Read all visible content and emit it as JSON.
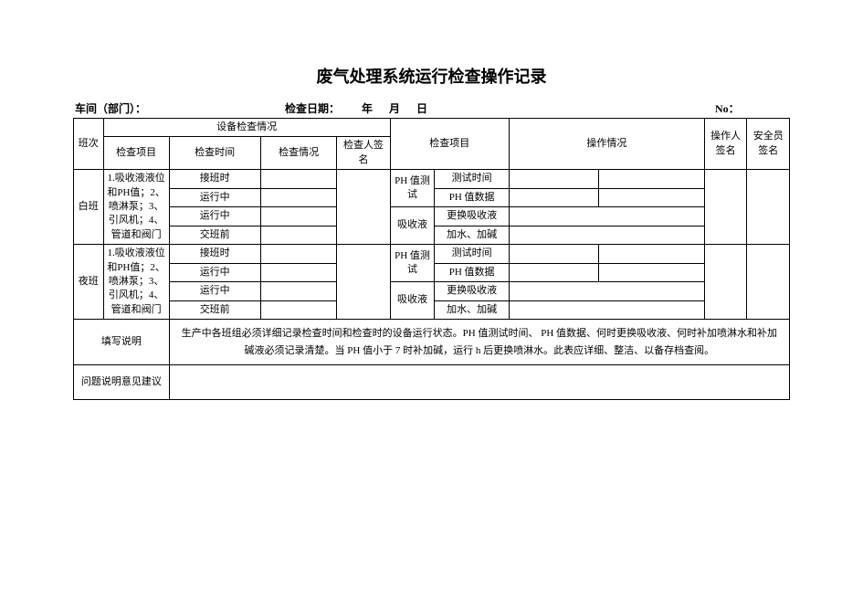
{
  "title": "废气处理系统运行检查操作记录",
  "header": {
    "workshop_label": "车间（部门）：",
    "date_label": "检查日期：",
    "year_label": "年",
    "month_label": "月",
    "day_label": "日",
    "no_label": "No：",
    "spacer6": "      ",
    "spacer4": "    "
  },
  "table_headers": {
    "shift": "班次",
    "equipment_check": "设备检查情况",
    "check_item": "检查项目",
    "check_time": "检查时间",
    "check_condition": "检查情况",
    "inspector_sign": "检查人签名",
    "check_item2": "检查项目",
    "operation_condition": "操作情况",
    "operator_sign": "操作人签名",
    "safety_sign": "安全员签名"
  },
  "shifts": {
    "day": "白班",
    "night": "夜班"
  },
  "check_items": {
    "main_item": "1.吸收液液位和PH值；2、喷淋泵；3、引风机；4、管道和阀门",
    "times": {
      "t1": "接班时",
      "t2": "运行中",
      "t3": "运行中",
      "t4": "交班前"
    }
  },
  "right_items": {
    "ph_test": "PH 值测试",
    "absorb": "吸收液",
    "sub": {
      "test_time": "测试时间",
      "ph_data": "PH 值数据",
      "replace": "更换吸收液",
      "add": "加水、加碱"
    }
  },
  "footer": {
    "instructions_label": "填写说明",
    "instructions_text": "生产中各班组必须详细记录检查时间和检查时的设备运行状态。PH 值测试时间、 PH 值数据、何时更换吸收液、何时补加喷淋水和补加碱液必须记录清楚。当 PH 值小于 7 时补加碱，运行 h 后更换喷淋水。此表应详细、整洁、以备存档查阅。",
    "problem_label": "问题说明意见建议"
  },
  "style": {
    "title_fontsize": 18,
    "body_fontsize": 12,
    "cell_fontsize": 11,
    "border_color": "#000000",
    "background_color": "#ffffff",
    "text_color": "#000000",
    "font_family": "SimSun"
  }
}
